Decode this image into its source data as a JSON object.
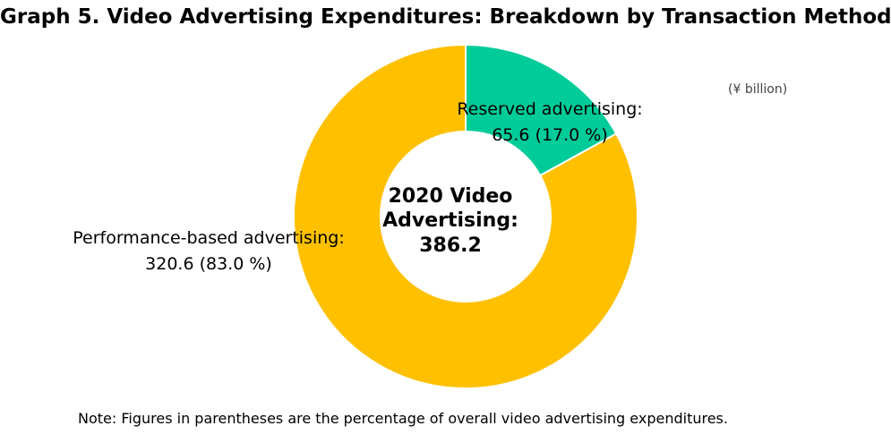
{
  "title": "Graph 5. Video Advertising Expenditures: Breakdown by Transaction Method",
  "unit_note": "(¥ billion)",
  "footnote": "Note: Figures in parentheses are the percentage of overall video advertising expenditures.",
  "center_label": {
    "line1": "2020 Video",
    "line2": "Advertising:",
    "line3": "386.2"
  },
  "chart_data": {
    "type": "pie",
    "title": "Graph 5. Video Advertising Expenditures: Breakdown by Transaction Method",
    "unit": "(¥ billion)",
    "total": 386.2,
    "donut": true,
    "start_angle_deg": 0,
    "direction": "clockwise",
    "slices": [
      {
        "name": "Reserved advertising:",
        "value": 65.6,
        "percent": 17.0,
        "value_label": "65.6 (17.0 %)",
        "color": "#00cc99"
      },
      {
        "name": "Performance-based advertising:",
        "value": 320.6,
        "percent": 83.0,
        "value_label": "320.6 (83.0 %)",
        "color": "#ffc000"
      }
    ]
  }
}
